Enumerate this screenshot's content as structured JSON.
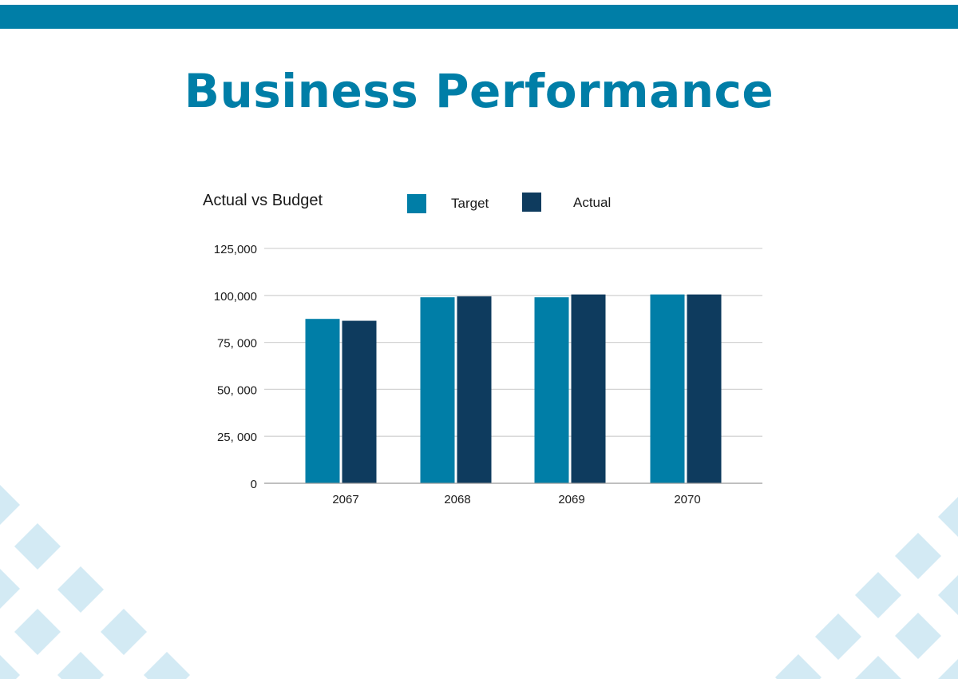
{
  "colors": {
    "brand": "#007ea7",
    "target": "#007ea7",
    "actual": "#0e3b5e",
    "decoration": "#d3eaf4",
    "gridline": "#d4d4d4",
    "axis": "#9a9a9a"
  },
  "page": {
    "title": "Business Performance"
  },
  "chart_data": {
    "type": "bar",
    "title": "Actual vs Budget",
    "xlabel": "",
    "ylabel": "",
    "categories": [
      "2067",
      "2068",
      "2069",
      "2070"
    ],
    "series": [
      {
        "name": "Target",
        "values": [
          87500,
          99000,
          99000,
          100500
        ]
      },
      {
        "name": "Actual",
        "values": [
          86500,
          99500,
          100500,
          100500
        ]
      }
    ],
    "ylim": [
      0,
      125000
    ],
    "yticks": [
      0,
      25000,
      50000,
      75000,
      100000,
      125000
    ],
    "ytick_labels": [
      "0",
      "25, 000",
      "50, 000",
      "75, 000",
      "100,000",
      "125,000"
    ],
    "grid": true,
    "legend_position": "top"
  }
}
